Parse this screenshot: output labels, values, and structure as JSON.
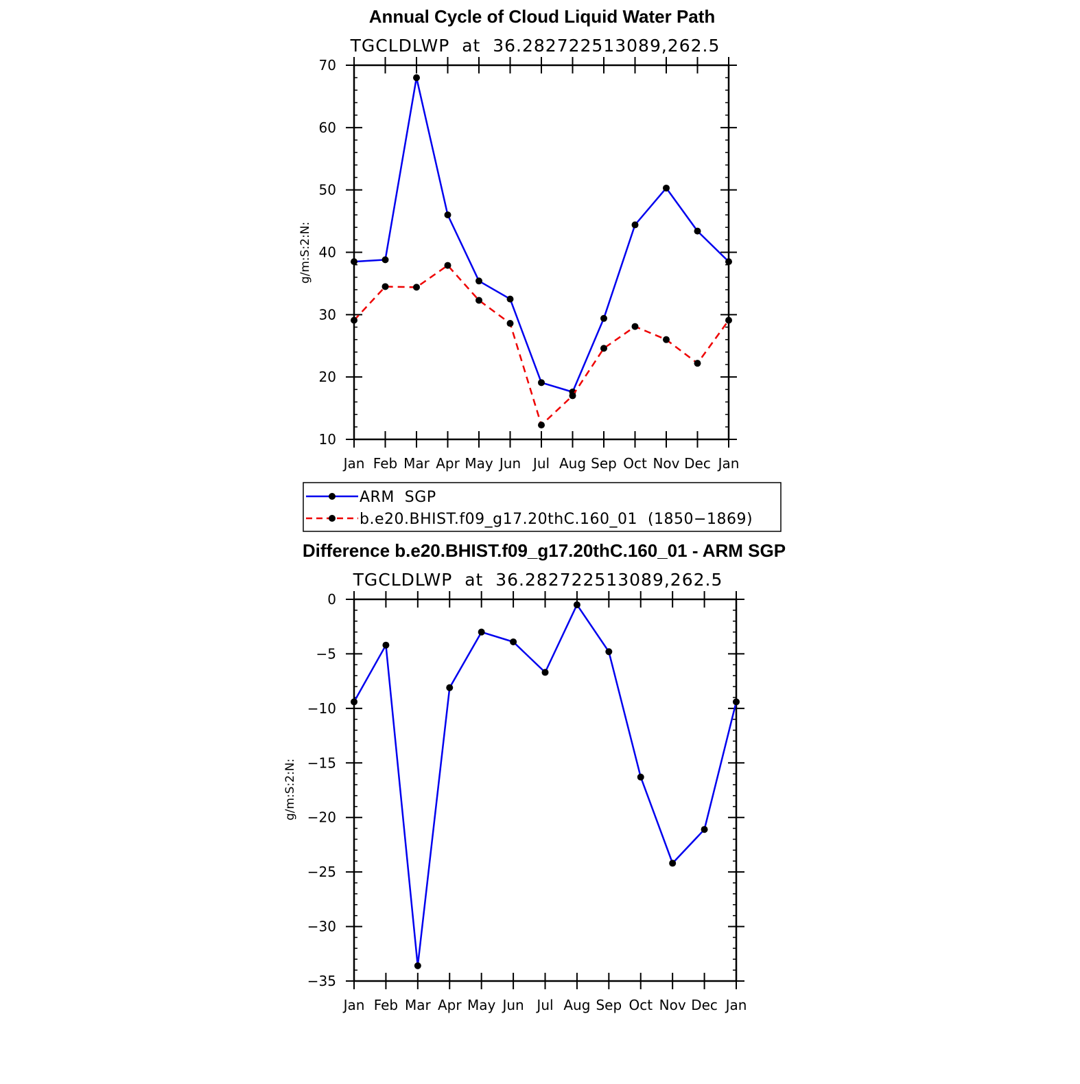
{
  "chart_data": [
    {
      "type": "line",
      "title": "Annual Cycle of Cloud Liquid Water Path",
      "subtitle": "TGCLDLWP  at  36.282722513089,262.5",
      "ylabel": "g/m:S:2:N:",
      "xlabel": "",
      "ylim": [
        10,
        70
      ],
      "yticks": [
        10,
        20,
        30,
        40,
        50,
        60,
        70
      ],
      "yticklabels": [
        "10",
        "20",
        "30",
        "40",
        "50",
        "60",
        "70"
      ],
      "categories": [
        "Jan",
        "Feb",
        "Mar",
        "Apr",
        "May",
        "Jun",
        "Jul",
        "Aug",
        "Sep",
        "Oct",
        "Nov",
        "Dec",
        "Jan"
      ],
      "series": [
        {
          "name": "ARM SGP",
          "color": "#0000ee",
          "dash": "solid",
          "values": [
            38.5,
            38.8,
            68.0,
            46.0,
            35.4,
            32.5,
            19.1,
            17.6,
            29.4,
            44.4,
            50.3,
            43.4,
            38.5
          ]
        },
        {
          "name": "b.e20.BHIST.f09_g17.20thC.160_01 (1850−1869)",
          "color": "#ee0000",
          "dash": "dashed",
          "values": [
            29.1,
            34.5,
            34.4,
            37.9,
            32.3,
            28.6,
            12.3,
            17.0,
            24.6,
            28.1,
            26.0,
            22.2,
            29.1
          ]
        }
      ],
      "legend": {
        "position": "below",
        "entries": [
          "ARM  SGP",
          "b.e20.BHIST.f09_g17.20thC.160_01  (1850−1869)"
        ]
      }
    },
    {
      "type": "line",
      "title": "Difference b.e20.BHIST.f09_g17.20thC.160_01 - ARM SGP",
      "subtitle": "TGCLDLWP  at  36.282722513089,262.5",
      "ylabel": "g/m:S:2:N:",
      "xlabel": "",
      "ylim": [
        -35,
        0
      ],
      "yticks": [
        -35,
        -30,
        -25,
        -20,
        -15,
        -10,
        -5,
        0
      ],
      "yticklabels": [
        "−35",
        "−30",
        "−25",
        "−20",
        "−15",
        "−10",
        "−5",
        "0"
      ],
      "categories": [
        "Jan",
        "Feb",
        "Mar",
        "Apr",
        "May",
        "Jun",
        "Jul",
        "Aug",
        "Sep",
        "Oct",
        "Nov",
        "Dec",
        "Jan"
      ],
      "series": [
        {
          "name": "Difference",
          "color": "#0000ee",
          "dash": "solid",
          "values": [
            -9.4,
            -4.2,
            -33.6,
            -8.1,
            -3.0,
            -3.9,
            -6.7,
            -0.5,
            -4.8,
            -16.3,
            -24.2,
            -21.1,
            -9.4
          ]
        }
      ]
    }
  ]
}
